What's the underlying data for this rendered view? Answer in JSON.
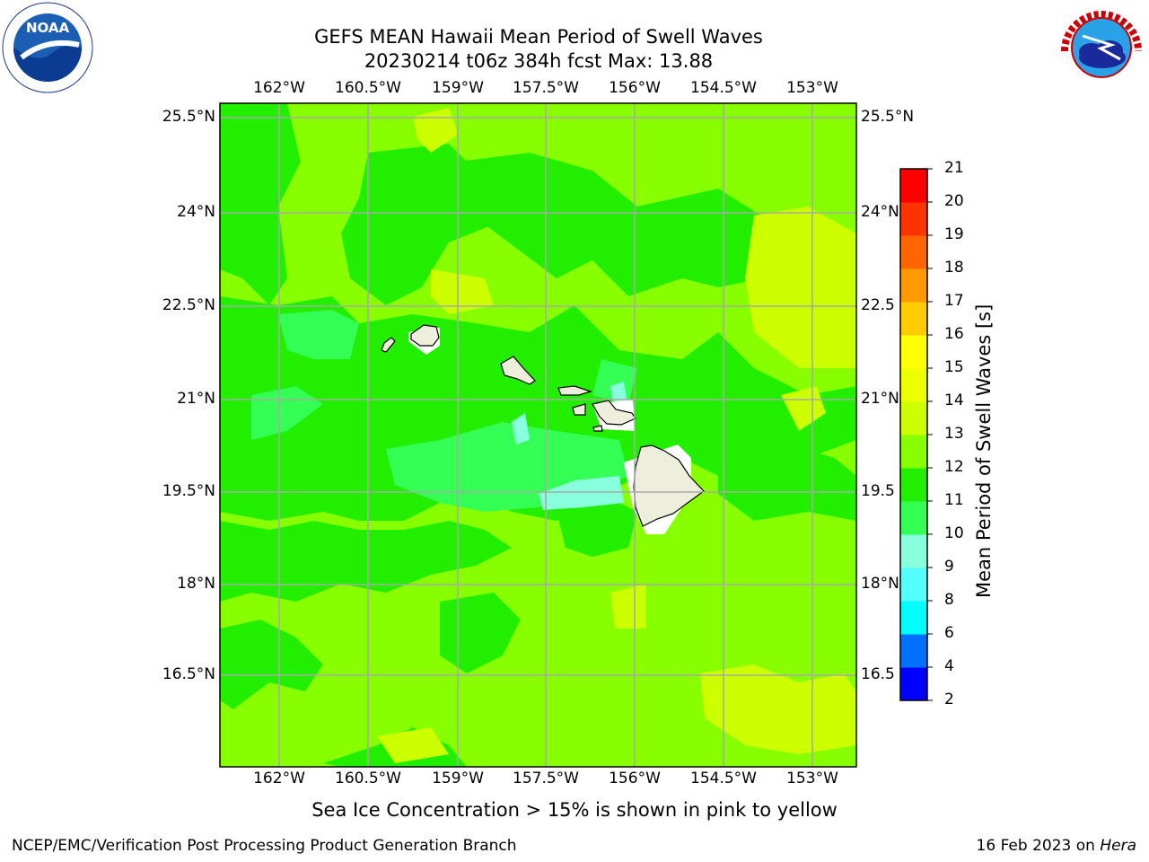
{
  "header": {
    "title_line1": "GEFS MEAN Hawaii Mean Period of Swell Waves",
    "title_line2": "20230214 t06z 384h fcst   Max: 13.88"
  },
  "logos": {
    "noaa_text": "NOAA",
    "noaa_ring_text": "NATIONAL OCEANIC AND ATMOSPHERIC ADMINISTRATION · U.S. DEPARTMENT OF COMMERCE",
    "nws_ring_text": "NATIONAL WEATHER SERVICE"
  },
  "map": {
    "lon_ticks": [
      "162°W",
      "160.5°W",
      "159°W",
      "157.5°W",
      "156°W",
      "154.5°W",
      "153°W"
    ],
    "lat_ticks": [
      "25.5°N",
      "24°N",
      "22.5°N",
      "21°N",
      "19.5°N",
      "18°N",
      "16.5°N"
    ],
    "lat_ticks_right": [
      "25.5°N",
      "24°N",
      "22.5",
      "21°N",
      "19.5",
      "18°N",
      "16.5"
    ],
    "background_color": "#88ff00"
  },
  "colorbar": {
    "title": "Mean Period of Swell Waves [s]",
    "levels": [
      "2",
      "4",
      "6",
      "8",
      "9",
      "10",
      "11",
      "12",
      "13",
      "14",
      "15",
      "16",
      "17",
      "18",
      "19",
      "20",
      "21"
    ],
    "colors": [
      "#0000ff",
      "#0070ff",
      "#00ffff",
      "#55ffff",
      "#88ffdd",
      "#33ff55",
      "#22ee00",
      "#88ff00",
      "#ccff00",
      "#eeff00",
      "#ffff00",
      "#ffcc00",
      "#ff9900",
      "#ff6600",
      "#ff3300",
      "#ff0000"
    ]
  },
  "subtitle": "Sea Ice Concentration > 15% is shown in pink to yellow",
  "footer": {
    "left": "NCEP/EMC/Verification Post Processing Product Generation Branch",
    "right_date": "16 Feb 2023 on ",
    "right_host": "Hera"
  }
}
